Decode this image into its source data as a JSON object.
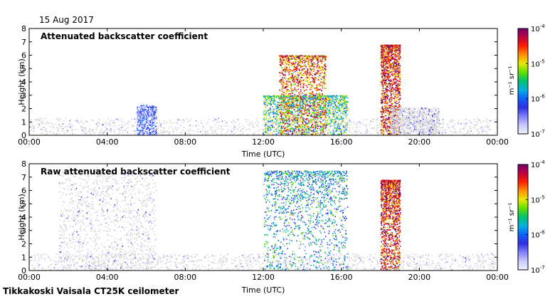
{
  "header": {
    "date": "15 Aug 2017"
  },
  "footer": {
    "instrument": "Tikkakoski Vaisala CT25K ceilometer"
  },
  "colorbar": {
    "unit_label": "m⁻¹ sr⁻¹",
    "tick_bases": [
      "10",
      "10",
      "10",
      "10"
    ],
    "tick_exponents": [
      "-4",
      "-5",
      "-6",
      "-7"
    ],
    "range_log10": [
      -7,
      -4
    ],
    "colors": [
      "#f0f0ff",
      "#c8c8ff",
      "#8080ff",
      "#3030e0",
      "#1060ff",
      "#00b0e0",
      "#00c070",
      "#60e000",
      "#e8e800",
      "#ff9000",
      "#ff2000",
      "#c00040",
      "#700070"
    ]
  },
  "colors": {
    "background_noise": "#d3d3d3",
    "low_signal": "#2030e0",
    "mid_signal": "#00b050",
    "high_signal": "#ffd000",
    "max_signal": "#ff2000"
  },
  "chart_data": [
    {
      "type": "heatmap",
      "title": "Attenuated backscatter coefficient",
      "xlabel": "Time (UTC)",
      "ylabel": "Height (km)",
      "x_ticks": [
        "00:00",
        "04:00",
        "08:00",
        "12:00",
        "16:00",
        "20:00",
        "00:00"
      ],
      "y_ticks": [
        "0",
        "1",
        "2",
        "3",
        "4",
        "5",
        "6",
        "7",
        "8"
      ],
      "xlim_hours": [
        0,
        24
      ],
      "ylim_km": [
        0,
        8
      ],
      "z_scale": "log",
      "zlim": [
        1e-07,
        0.0001
      ],
      "features": [
        {
          "name": "boundary layer",
          "t_start_h": 0.0,
          "t_end_h": 24.0,
          "h_top_km": 1.3,
          "level_log10": -6.9
        },
        {
          "name": "morning aerosol",
          "t_start_h": 5.5,
          "t_end_h": 6.5,
          "h_top_km": 2.3,
          "level_log10": -6.4
        },
        {
          "name": "low clouds",
          "t_start_h": 12.0,
          "t_end_h": 16.3,
          "h_top_km": 3.0,
          "level_log10": -5.5
        },
        {
          "name": "mid cloud layer",
          "t_start_h": 12.8,
          "t_end_h": 15.2,
          "h_top_km": 6.0,
          "level_log10": -4.7
        },
        {
          "name": "evening cloud",
          "t_start_h": 18.0,
          "t_end_h": 19.0,
          "h_top_km": 6.8,
          "level_log10": -4.5
        },
        {
          "name": "afternoon mixed layer",
          "t_start_h": 18.5,
          "t_end_h": 21.0,
          "h_top_km": 2.1,
          "level_log10": -6.7
        }
      ]
    },
    {
      "type": "heatmap",
      "title": "Raw attenuated backscatter coefficient",
      "xlabel": "Time (UTC)",
      "ylabel": "Height (km)",
      "x_ticks": [
        "00:00",
        "04:00",
        "08:00",
        "12:00",
        "16:00",
        "20:00",
        "00:00"
      ],
      "y_ticks": [
        "0",
        "1",
        "2",
        "3",
        "4",
        "5",
        "6",
        "7",
        "8"
      ],
      "xlim_hours": [
        0,
        24
      ],
      "ylim_km": [
        0,
        8
      ],
      "z_scale": "log",
      "zlim": [
        1e-07,
        0.0001
      ],
      "features": [
        {
          "name": "boundary layer",
          "t_start_h": 0.0,
          "t_end_h": 24.0,
          "h_top_km": 1.3,
          "level_log10": -6.9
        },
        {
          "name": "noise region",
          "t_start_h": 1.5,
          "t_end_h": 6.5,
          "h_top_km": 7.5,
          "level_log10": -6.8
        },
        {
          "name": "precipitation columns",
          "t_start_h": 12.0,
          "t_end_h": 16.3,
          "h_top_km": 7.5,
          "level_log10": -5.8
        },
        {
          "name": "evening cloud",
          "t_start_h": 18.0,
          "t_end_h": 19.0,
          "h_top_km": 6.8,
          "level_log10": -4.5
        }
      ]
    }
  ]
}
